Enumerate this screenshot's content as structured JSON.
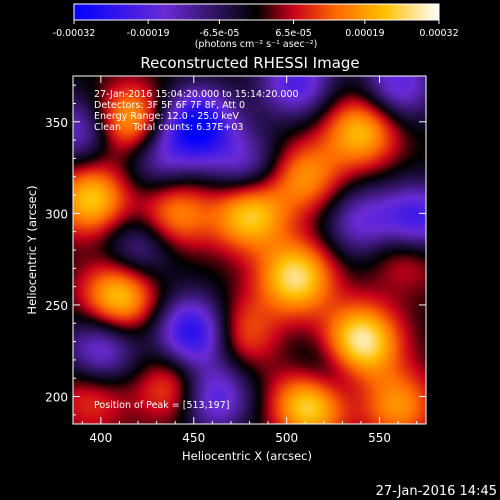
{
  "colorbar": {
    "tick_labels": [
      "-0.00032",
      "-0.00019",
      "-6.5e-05",
      "6.5e-05",
      "0.00019",
      "0.00032"
    ],
    "tick_values": [
      -0.00032,
      -0.00019,
      -6.5e-05,
      6.5e-05,
      0.00019,
      0.00032
    ],
    "range": [
      -0.00032,
      0.00032
    ],
    "unit_label": "(photons cm⁻² s⁻¹ asec⁻²)",
    "colormap_stops": [
      "#0000ff",
      "#6a2bd6",
      "#000000",
      "#c8001a",
      "#ff6a00",
      "#ffc000",
      "#ffffff"
    ]
  },
  "chart_data": {
    "type": "heatmap",
    "title": "Reconstructed RHESSI Image",
    "xlabel": "Heliocentric X (arcsec)",
    "ylabel": "Heliocentric Y (arcsec)",
    "xlim": [
      385,
      575
    ],
    "ylim": [
      185,
      375
    ],
    "xticks": [
      400,
      450,
      500,
      550
    ],
    "yticks": [
      200,
      250,
      300,
      350
    ],
    "annotations": {
      "time_range": "27-Jan-2016 15:04:20.000 to 15:14:20.000",
      "detectors": "Detectors: 3F 5F 6F 7F 8F, Att 0",
      "energy_range": "Energy Range: 12.0 - 25.0 keV",
      "clean": "Clean    Total counts: 6.37E+03",
      "peak": "Position of Peak = [513,197]"
    },
    "peaks": [
      {
        "x": 513,
        "y": 197,
        "v": 1.0
      },
      {
        "x": 540,
        "y": 230,
        "v": 0.95
      },
      {
        "x": 505,
        "y": 265,
        "v": 0.85
      },
      {
        "x": 480,
        "y": 300,
        "v": 0.8
      },
      {
        "x": 410,
        "y": 255,
        "v": 0.8
      },
      {
        "x": 395,
        "y": 308,
        "v": 0.75
      },
      {
        "x": 415,
        "y": 350,
        "v": 0.75
      },
      {
        "x": 440,
        "y": 300,
        "v": 0.55
      },
      {
        "x": 540,
        "y": 345,
        "v": 0.7
      },
      {
        "x": 510,
        "y": 320,
        "v": 0.55
      },
      {
        "x": 475,
        "y": 235,
        "v": 0.45
      },
      {
        "x": 440,
        "y": 205,
        "v": 0.5
      },
      {
        "x": 565,
        "y": 280,
        "v": 0.45
      },
      {
        "x": 395,
        "y": 200,
        "v": 0.35
      },
      {
        "x": 560,
        "y": 195,
        "v": 0.55
      }
    ],
    "troughs": [
      {
        "x": 452,
        "y": 348,
        "v": -1.0
      },
      {
        "x": 450,
        "y": 235,
        "v": -0.9
      },
      {
        "x": 570,
        "y": 295,
        "v": -0.85
      },
      {
        "x": 505,
        "y": 372,
        "v": -0.65
      },
      {
        "x": 478,
        "y": 325,
        "v": -0.5
      },
      {
        "x": 540,
        "y": 295,
        "v": -0.5
      },
      {
        "x": 420,
        "y": 280,
        "v": -0.45
      },
      {
        "x": 390,
        "y": 345,
        "v": -0.55
      },
      {
        "x": 400,
        "y": 225,
        "v": -0.6
      },
      {
        "x": 520,
        "y": 210,
        "v": -0.5
      },
      {
        "x": 460,
        "y": 200,
        "v": -0.7
      },
      {
        "x": 430,
        "y": 330,
        "v": -0.45
      },
      {
        "x": 560,
        "y": 370,
        "v": -0.6
      }
    ]
  },
  "footer": {
    "timestamp": "27-Jan-2016 14:45"
  }
}
